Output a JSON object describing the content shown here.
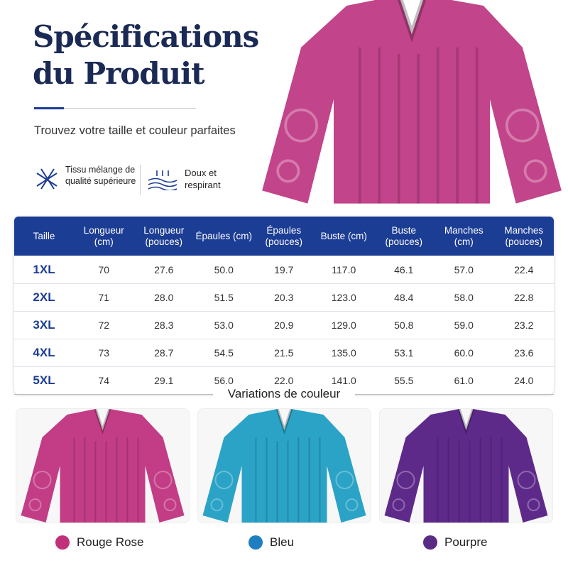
{
  "header": {
    "title_line1": "Spécifications",
    "title_line2": "du Produit",
    "subtitle": "Trouvez votre taille et couleur parfaites"
  },
  "features": [
    {
      "label": "Tissu mélange de qualité supérieure"
    },
    {
      "label": "Doux et respirant"
    }
  ],
  "table": {
    "headers": [
      "Taille",
      "Longueur (cm)",
      "Longueur (pouces)",
      "Épaules (cm)",
      "Épaules (pouces)",
      "Buste (cm)",
      "Buste (pouces)",
      "Manches (cm)",
      "Manches (pouces)"
    ],
    "rows": [
      [
        "1XL",
        "70",
        "27.6",
        "50.0",
        "19.7",
        "117.0",
        "46.1",
        "57.0",
        "22.4"
      ],
      [
        "2XL",
        "71",
        "28.0",
        "51.5",
        "20.3",
        "123.0",
        "48.4",
        "58.0",
        "22.8"
      ],
      [
        "3XL",
        "72",
        "28.3",
        "53.0",
        "20.9",
        "129.0",
        "50.8",
        "59.0",
        "23.2"
      ],
      [
        "4XL",
        "73",
        "28.7",
        "54.5",
        "21.5",
        "135.0",
        "53.1",
        "60.0",
        "23.6"
      ],
      [
        "5XL",
        "74",
        "29.1",
        "56.0",
        "22.0",
        "141.0",
        "55.5",
        "61.0",
        "24.0"
      ]
    ]
  },
  "variations": {
    "title": "Variations de couleur",
    "colors": [
      "Rouge Rose",
      "Bleu",
      "Pourpre"
    ]
  }
}
